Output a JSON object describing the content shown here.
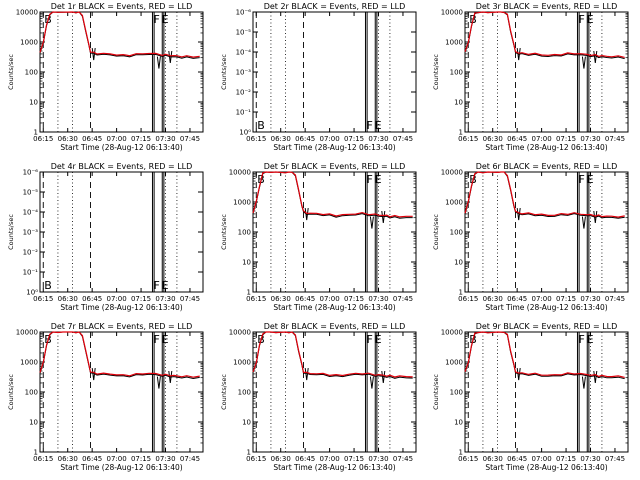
{
  "chart_data": [
    {
      "id": "p1",
      "type": "line",
      "title": "Det 1r BLACK = Events, RED = LLD",
      "xlabel": "Start Time (28-Aug-12 06:13:40)",
      "ylabel": "Counts/sec",
      "yscale": "log",
      "ylim": [
        1,
        10000
      ],
      "xlim": [
        "06:13",
        "07:53"
      ],
      "x_ticks": [
        "06:15",
        "06:30",
        "06:45",
        "07:00",
        "07:15",
        "07:30",
        "07:45"
      ],
      "y_ticks": [
        "1",
        "10",
        "100",
        "1000",
        "10000"
      ],
      "markers": [
        {
          "text": "B",
          "at": "06:15"
        },
        {
          "text": "F",
          "at": "07:22"
        },
        {
          "text": "E",
          "at": "07:27"
        }
      ],
      "has_data": true,
      "legend": [
        "BLACK = Events",
        "RED = LLD"
      ]
    },
    {
      "id": "p2",
      "type": "line",
      "title": "Det 2r BLACK = Events, RED = LLD",
      "xlabel": "Start Time (28-Aug-12 06:13:40)",
      "ylabel": "Counts/sec",
      "yscale": "log",
      "ylim": [
        1,
        1e-06
      ],
      "xlim": [
        "06:13",
        "07:53"
      ],
      "x_ticks": [
        "06:15",
        "06:30",
        "06:45",
        "07:00",
        "07:15",
        "07:30",
        "07:45"
      ],
      "y_ticks": [
        "10⁰",
        "10⁻¹",
        "10⁻²",
        "10⁻³",
        "10⁻⁴",
        "10⁻⁵",
        "10⁻⁶"
      ],
      "markers": [
        {
          "text": "B",
          "at": "06:15"
        },
        {
          "text": "F",
          "at": "07:22"
        },
        {
          "text": "E",
          "at": "07:27"
        }
      ],
      "has_data": false
    },
    {
      "id": "p3",
      "type": "line",
      "title": "Det 3r BLACK = Events, RED = LLD",
      "xlabel": "Start Time (28-Aug-12 06:13:40)",
      "ylabel": "Counts/sec",
      "yscale": "log",
      "ylim": [
        1,
        10000
      ],
      "xlim": [
        "06:13",
        "07:53"
      ],
      "x_ticks": [
        "06:15",
        "06:30",
        "06:45",
        "07:00",
        "07:15",
        "07:30",
        "07:45"
      ],
      "y_ticks": [
        "1",
        "10",
        "100",
        "1000",
        "10000"
      ],
      "markers": [
        {
          "text": "B",
          "at": "06:15"
        },
        {
          "text": "F",
          "at": "07:22"
        },
        {
          "text": "E",
          "at": "07:27"
        }
      ],
      "has_data": true
    },
    {
      "id": "p4",
      "type": "line",
      "title": "Det 4r BLACK = Events, RED = LLD",
      "xlabel": "Start Time (28-Aug-12 06:13:40)",
      "ylabel": "Counts/sec",
      "yscale": "log",
      "ylim": [
        1,
        1e-06
      ],
      "xlim": [
        "06:13",
        "07:53"
      ],
      "x_ticks": [
        "06:15",
        "06:30",
        "06:45",
        "07:00",
        "07:15",
        "07:30",
        "07:45"
      ],
      "y_ticks": [
        "10⁰",
        "10⁻¹",
        "10⁻²",
        "10⁻³",
        "10⁻⁴",
        "10⁻⁵",
        "10⁻⁶"
      ],
      "markers": [
        {
          "text": "B",
          "at": "06:15"
        },
        {
          "text": "F",
          "at": "07:22"
        },
        {
          "text": "E",
          "at": "07:27"
        }
      ],
      "has_data": false
    },
    {
      "id": "p5",
      "type": "line",
      "title": "Det 5r BLACK = Events, RED = LLD",
      "xlabel": "Start Time (28-Aug-12 06:13:40)",
      "ylabel": "Counts/sec",
      "yscale": "log",
      "ylim": [
        1,
        10000
      ],
      "xlim": [
        "06:13",
        "07:53"
      ],
      "x_ticks": [
        "06:15",
        "06:30",
        "06:45",
        "07:00",
        "07:15",
        "07:30",
        "07:45"
      ],
      "y_ticks": [
        "1",
        "10",
        "100",
        "1000",
        "10000"
      ],
      "markers": [
        {
          "text": "B",
          "at": "06:15"
        },
        {
          "text": "F",
          "at": "07:22"
        },
        {
          "text": "E",
          "at": "07:27"
        }
      ],
      "has_data": true
    },
    {
      "id": "p6",
      "type": "line",
      "title": "Det 6r BLACK = Events, RED = LLD",
      "xlabel": "Start Time (28-Aug-12 06:13:40)",
      "ylabel": "Counts/sec",
      "yscale": "log",
      "ylim": [
        1,
        10000
      ],
      "xlim": [
        "06:13",
        "07:53"
      ],
      "x_ticks": [
        "06:15",
        "06:30",
        "06:45",
        "07:00",
        "07:15",
        "07:30",
        "07:45"
      ],
      "y_ticks": [
        "1",
        "10",
        "100",
        "1000",
        "10000"
      ],
      "markers": [
        {
          "text": "B",
          "at": "06:15"
        },
        {
          "text": "F",
          "at": "07:22"
        },
        {
          "text": "E",
          "at": "07:27"
        }
      ],
      "has_data": true
    },
    {
      "id": "p7",
      "type": "line",
      "title": "Det 7r BLACK = Events, RED = LLD",
      "xlabel": "Start Time (28-Aug-12 06:13:40)",
      "ylabel": "Counts/sec",
      "yscale": "log",
      "ylim": [
        1,
        10000
      ],
      "xlim": [
        "06:13",
        "07:53"
      ],
      "x_ticks": [
        "06:15",
        "06:30",
        "06:45",
        "07:00",
        "07:15",
        "07:30",
        "07:45"
      ],
      "y_ticks": [
        "1",
        "10",
        "100",
        "1000",
        "10000"
      ],
      "markers": [
        {
          "text": "B",
          "at": "06:15"
        },
        {
          "text": "F",
          "at": "07:22"
        },
        {
          "text": "E",
          "at": "07:27"
        }
      ],
      "has_data": true
    },
    {
      "id": "p8",
      "type": "line",
      "title": "Det 8r BLACK = Events, RED = LLD",
      "xlabel": "Start Time (28-Aug-12 06:13:40)",
      "ylabel": "Counts/sec",
      "yscale": "log",
      "ylim": [
        1,
        10000
      ],
      "xlim": [
        "06:13",
        "07:53"
      ],
      "x_ticks": [
        "06:15",
        "06:30",
        "06:45",
        "07:00",
        "07:15",
        "07:30",
        "07:45"
      ],
      "y_ticks": [
        "1",
        "10",
        "100",
        "1000",
        "10000"
      ],
      "markers": [
        {
          "text": "B",
          "at": "06:15"
        },
        {
          "text": "F",
          "at": "07:22"
        },
        {
          "text": "E",
          "at": "07:27"
        }
      ],
      "has_data": true
    },
    {
      "id": "p9",
      "type": "line",
      "title": "Det 9r BLACK = Events, RED = LLD",
      "xlabel": "Start Time (28-Aug-12 06:13:40)",
      "ylabel": "Counts/sec",
      "yscale": "log",
      "ylim": [
        1,
        10000
      ],
      "xlim": [
        "06:13",
        "07:53"
      ],
      "x_ticks": [
        "06:15",
        "06:30",
        "06:45",
        "07:00",
        "07:15",
        "07:30",
        "07:45"
      ],
      "y_ticks": [
        "1",
        "10",
        "100",
        "1000",
        "10000"
      ],
      "markers": [
        {
          "text": "B",
          "at": "06:15"
        },
        {
          "text": "F",
          "at": "07:22"
        },
        {
          "text": "E",
          "at": "07:27"
        }
      ],
      "has_data": true
    }
  ],
  "series_shape": {
    "x": [
      "06:13",
      "06:15",
      "06:17",
      "06:19",
      "06:21",
      "06:24",
      "06:27",
      "06:33",
      "06:35",
      "06:37",
      "06:39",
      "06:41",
      "06:43",
      "06:44",
      "06:46",
      "06:48",
      "06:52",
      "06:56",
      "07:00",
      "07:04",
      "07:08",
      "07:12",
      "07:16",
      "07:20",
      "07:24",
      "07:28",
      "07:30",
      "07:33",
      "07:35",
      "07:37",
      "07:40",
      "07:43",
      "07:47",
      "07:51"
    ],
    "lld": [
      450,
      1000,
      3500,
      9000,
      10000,
      10000,
      10000,
      10000,
      10000,
      10000,
      8000,
      2500,
      800,
      480,
      430,
      420,
      410,
      400,
      380,
      360,
      370,
      390,
      410,
      420,
      400,
      380,
      370,
      360,
      350,
      340,
      335,
      330,
      330,
      325
    ],
    "events": [
      430,
      950,
      3300,
      8500,
      10000,
      10000,
      10000,
      10000,
      10000,
      10000,
      7500,
      2300,
      750,
      450,
      400,
      390,
      380,
      370,
      350,
      330,
      340,
      360,
      380,
      390,
      370,
      350,
      340,
      330,
      320,
      310,
      305,
      300,
      300,
      295
    ],
    "dips": [
      {
        "at": "07:25",
        "to": 130
      },
      {
        "at": "07:32",
        "to": 200
      },
      {
        "at": "06:45",
        "to": 250
      }
    ]
  },
  "vlines": {
    "dotted": [
      "06:24",
      "06:33",
      "07:30",
      "07:37"
    ],
    "dashed": [
      "06:15",
      "06:44"
    ],
    "solid": [
      "07:22",
      "07:23",
      "07:28",
      "07:29"
    ]
  },
  "colors": {
    "events": "#000000",
    "lld": "#e0000b",
    "axis": "#000000",
    "background": "#ffffff"
  }
}
